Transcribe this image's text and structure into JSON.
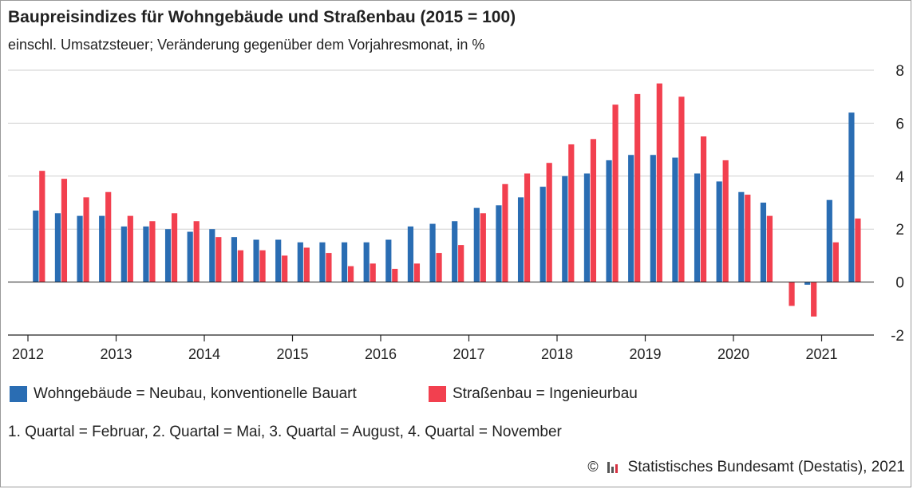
{
  "title": "Baupreisindizes für Wohngebäude und Straßenbau (2015 = 100)",
  "subtitle": "einschl. Umsatzsteuer; Veränderung gegenüber dem Vorjahresmonat, in %",
  "footnote": "1. Quartal = Februar, 2. Quartal = Mai, 3. Quartal = August, 4. Quartal = November",
  "source": {
    "copyright_symbol": "©",
    "text": "Statistisches Bundesamt (Destatis), 2021"
  },
  "colors": {
    "wohngebaeude": "#2a6db3",
    "strassenbau": "#f2404f",
    "grid": "#cfcfcf",
    "axis": "#222222"
  },
  "chart_data": {
    "type": "bar",
    "ylim": [
      -2,
      8
    ],
    "yticks": [
      -2,
      0,
      2,
      4,
      6,
      8
    ],
    "ytick_labels": [
      "-2",
      "0",
      "2",
      "4",
      "6",
      "8"
    ],
    "year_labels": [
      "2012",
      "2013",
      "2014",
      "2015",
      "2016",
      "2017",
      "2018",
      "2019",
      "2020",
      "2021"
    ],
    "quarters_per_year": 4,
    "x": [
      "2012-Q1",
      "2012-Q2",
      "2012-Q3",
      "2012-Q4",
      "2013-Q1",
      "2013-Q2",
      "2013-Q3",
      "2013-Q4",
      "2014-Q1",
      "2014-Q2",
      "2014-Q3",
      "2014-Q4",
      "2015-Q1",
      "2015-Q2",
      "2015-Q3",
      "2015-Q4",
      "2016-Q1",
      "2016-Q2",
      "2016-Q3",
      "2016-Q4",
      "2017-Q1",
      "2017-Q2",
      "2017-Q3",
      "2017-Q4",
      "2018-Q1",
      "2018-Q2",
      "2018-Q3",
      "2018-Q4",
      "2019-Q1",
      "2019-Q2",
      "2019-Q3",
      "2019-Q4",
      "2020-Q1",
      "2020-Q2",
      "2020-Q3",
      "2020-Q4",
      "2021-Q1",
      "2021-Q2"
    ],
    "grid": true,
    "legend_position": "bottom",
    "series": [
      {
        "name": "Wohngebäude = Neubau, konventionelle Bauart",
        "color": "#2a6db3",
        "values": [
          2.7,
          2.6,
          2.5,
          2.5,
          2.1,
          2.1,
          2.0,
          1.9,
          2.0,
          1.7,
          1.6,
          1.6,
          1.5,
          1.5,
          1.5,
          1.5,
          1.6,
          2.1,
          2.2,
          2.3,
          2.8,
          2.9,
          3.2,
          3.6,
          4.0,
          4.1,
          4.6,
          4.8,
          4.8,
          4.7,
          4.1,
          3.8,
          3.4,
          3.0,
          null,
          -0.1,
          3.1,
          6.4
        ]
      },
      {
        "name": "Straßenbau = Ingenieurbau",
        "color": "#f2404f",
        "values": [
          4.2,
          3.9,
          3.2,
          3.4,
          2.5,
          2.3,
          2.6,
          2.3,
          1.7,
          1.2,
          1.2,
          1.0,
          1.3,
          1.1,
          0.6,
          0.7,
          0.5,
          0.7,
          1.1,
          1.4,
          2.6,
          3.7,
          4.1,
          4.5,
          5.2,
          5.4,
          6.7,
          7.1,
          7.5,
          7.0,
          5.5,
          4.6,
          3.3,
          2.5,
          -0.9,
          -1.3,
          1.5,
          2.4
        ]
      }
    ]
  }
}
